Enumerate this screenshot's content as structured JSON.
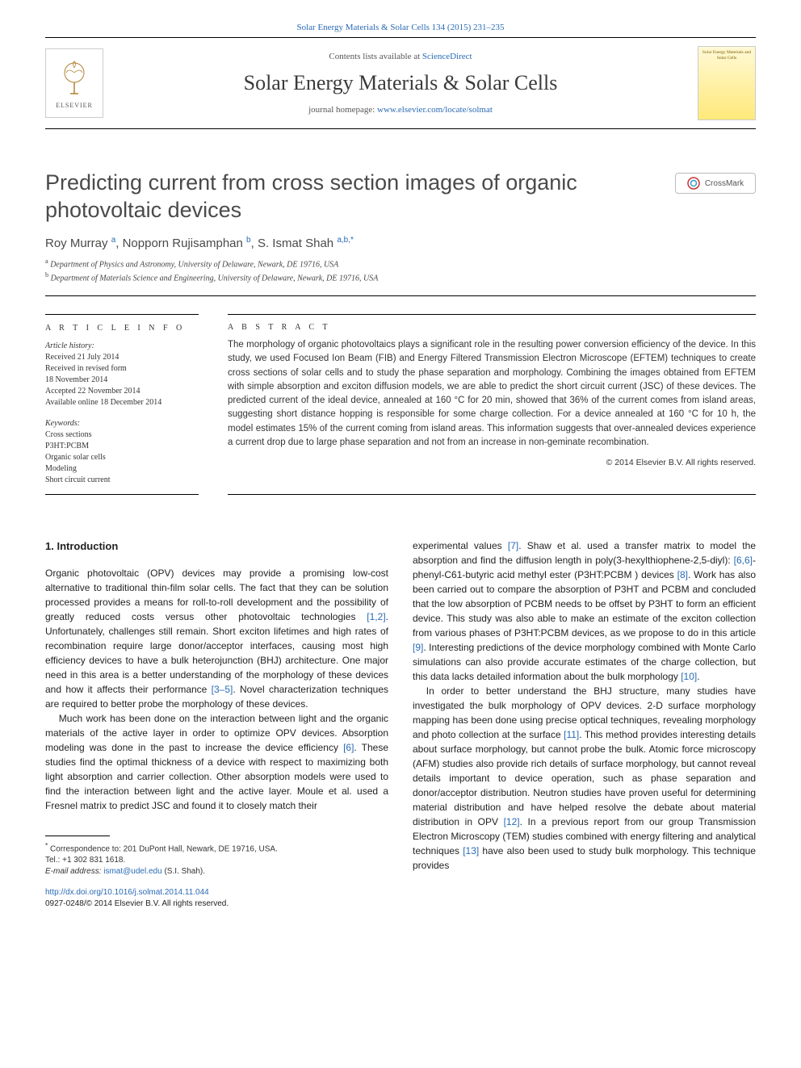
{
  "journal_ref": "Solar Energy Materials & Solar Cells 134 (2015) 231–235",
  "header": {
    "contents_prefix": "Contents lists available at ",
    "contents_link": "ScienceDirect",
    "journal_title": "Solar Energy Materials & Solar Cells",
    "homepage_prefix": "journal homepage: ",
    "homepage_link": "www.elsevier.com/locate/solmat",
    "elsevier_label": "ELSEVIER",
    "cover_title": "Solar Energy Materials and Solar Cells"
  },
  "crossmark_label": "CrossMark",
  "title": "Predicting current from cross section images of organic photovoltaic devices",
  "authors_html": "Roy Murray <sup>a</sup>, Nopporn Rujisamphan <sup>b</sup>, S. Ismat Shah <sup>a,b,</sup>",
  "authors": [
    {
      "name": "Roy Murray",
      "aff": "a"
    },
    {
      "name": "Nopporn Rujisamphan",
      "aff": "b"
    },
    {
      "name": "S. Ismat Shah",
      "aff": "a,b,*"
    }
  ],
  "affiliations": [
    {
      "key": "a",
      "text": "Department of Physics and Astronomy, University of Delaware, Newark, DE 19716, USA"
    },
    {
      "key": "b",
      "text": "Department of Materials Science and Engineering, University of Delaware, Newark, DE 19716, USA"
    }
  ],
  "info": {
    "label": "A R T I C L E   I N F O",
    "history_label": "Article history:",
    "history": [
      "Received 21 July 2014",
      "Received in revised form",
      "18 November 2014",
      "Accepted 22 November 2014",
      "Available online 18 December 2014"
    ],
    "keywords_label": "Keywords:",
    "keywords": [
      "Cross sections",
      "P3HT:PCBM",
      "Organic solar cells",
      "Modeling",
      "Short circuit current"
    ]
  },
  "abstract": {
    "label": "A B S T R A C T",
    "text": "The morphology of organic photovoltaics plays a significant role in the resulting power conversion efficiency of the device. In this study, we used Focused Ion Beam (FIB) and Energy Filtered Transmission Electron Microscope (EFTEM) techniques to create cross sections of solar cells and to study the phase separation and morphology. Combining the images obtained from EFTEM with simple absorption and exciton diffusion models, we are able to predict the short circuit current (JSC) of these devices. The predicted current of the ideal device, annealed at 160 °C for 20 min, showed that 36% of the current comes from island areas, suggesting short distance hopping is responsible for some charge collection. For a device annealed at 160 °C for 10 h, the model estimates 15% of the current coming from island areas. This information suggests that over-annealed devices experience a current drop due to large phase separation and not from an increase in non-geminate recombination.",
    "copyright": "© 2014 Elsevier B.V. All rights reserved."
  },
  "body": {
    "heading": "1.  Introduction",
    "left_paragraphs": [
      "Organic photovoltaic (OPV) devices may provide a promising low-cost alternative to traditional thin-film solar cells. The fact that they can be solution processed provides a means for roll-to-roll development and the possibility of greatly reduced costs versus other photovoltaic technologies [1,2]. Unfortunately, challenges still remain. Short exciton lifetimes and high rates of recombination require large donor/acceptor interfaces, causing most high efficiency devices to have a bulk heterojunction (BHJ) architecture. One major need in this area is a better understanding of the morphology of these devices and how it affects their performance [3–5]. Novel characterization techniques are required to better probe the morphology of these devices.",
      "Much work has been done on the interaction between light and the organic materials of the active layer in order to optimize OPV devices. Absorption modeling was done in the past to increase the device efficiency [6]. These studies find the optimal thickness of a device with respect to maximizing both light absorption and carrier collection. Other absorption models were used to find the interaction between light and the active layer. Moule et al. used a Fresnel matrix to predict JSC and found it to closely match their"
    ],
    "right_paragraphs": [
      "experimental values [7]. Shaw et al. used a transfer matrix to model the absorption and find the diffusion length in poly(3-hexylthiophene-2,5-diyl): [6,6]-phenyl-C61-butyric acid methyl ester (P3HT:PCBM ) devices [8]. Work has also been carried out to compare the absorption of P3HT and PCBM and concluded that the low absorption of PCBM needs to be offset by P3HT to form an efficient device. This study was also able to make an estimate of the exciton collection from various phases of P3HT:PCBM devices, as we propose to do in this article [9]. Interesting predictions of the device morphology combined with Monte Carlo simulations can also provide accurate estimates of the charge collection, but this data lacks detailed information about the bulk morphology [10].",
      "In order to better understand the BHJ structure, many studies have investigated the bulk morphology of OPV devices. 2-D surface morphology mapping has been done using precise optical techniques, revealing morphology and photo collection at the surface [11]. This method provides interesting details about surface morphology, but cannot probe the bulk. Atomic force microscopy (AFM) studies also provide rich details of surface morphology, but cannot reveal details important to device operation, such as phase separation and donor/acceptor distribution. Neutron studies have proven useful for determining material distribution and have helped resolve the debate about material distribution in OPV [12]. In a previous report from our group Transmission Electron Microscopy (TEM) studies combined with energy filtering and analytical techniques [13] have also been used to study bulk morphology. This technique provides"
    ]
  },
  "footnotes": {
    "corr": "Correspondence to: 201 DuPont Hall, Newark, DE 19716, USA.",
    "tel": "Tel.: +1 302 831 1618.",
    "email_label": "E-mail address: ",
    "email": "ismat@udel.edu",
    "email_suffix": " (S.I. Shah)."
  },
  "doi": {
    "url": "http://dx.doi.org/10.1016/j.solmat.2014.11.044",
    "issn_line": "0927-0248/© 2014 Elsevier B.V. All rights reserved."
  },
  "colors": {
    "link": "#2a6ab5",
    "text": "#333333",
    "rule": "#000000",
    "cover_bg_top": "#fff9d6",
    "cover_bg_bottom": "#ffe97a"
  }
}
